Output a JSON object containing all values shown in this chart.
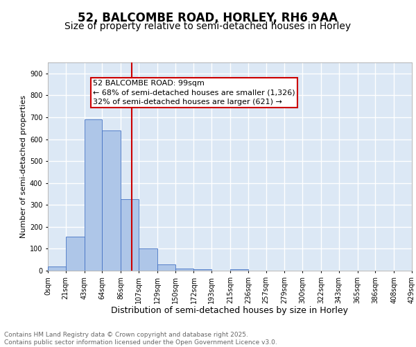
{
  "title": "52, BALCOMBE ROAD, HORLEY, RH6 9AA",
  "subtitle": "Size of property relative to semi-detached houses in Horley",
  "xlabel": "Distribution of semi-detached houses by size in Horley",
  "ylabel": "Number of semi-detached properties",
  "bar_edges": [
    0,
    21,
    43,
    64,
    86,
    107,
    129,
    150,
    172,
    193,
    215,
    236,
    257,
    279,
    300,
    322,
    343,
    365,
    386,
    408,
    429
  ],
  "bar_heights": [
    18,
    155,
    690,
    640,
    325,
    100,
    30,
    10,
    5,
    0,
    5,
    0,
    0,
    0,
    0,
    0,
    0,
    0,
    0,
    0
  ],
  "bar_color": "#aec6e8",
  "bar_edge_color": "#4472c4",
  "property_line_x": 99,
  "property_line_color": "#cc0000",
  "annotation_line1": "52 BALCOMBE ROAD: 99sqm",
  "annotation_line2": "← 68% of semi-detached houses are smaller (1,326)",
  "annotation_line3": "32% of semi-detached houses are larger (621) →",
  "annotation_box_color": "#cc0000",
  "annotation_box_bg": "#ffffff",
  "ylim": [
    0,
    950
  ],
  "yticks": [
    0,
    100,
    200,
    300,
    400,
    500,
    600,
    700,
    800,
    900
  ],
  "tick_labels": [
    "0sqm",
    "21sqm",
    "43sqm",
    "64sqm",
    "86sqm",
    "107sqm",
    "129sqm",
    "150sqm",
    "172sqm",
    "193sqm",
    "215sqm",
    "236sqm",
    "257sqm",
    "279sqm",
    "300sqm",
    "322sqm",
    "343sqm",
    "365sqm",
    "386sqm",
    "408sqm",
    "429sqm"
  ],
  "background_color": "#dce8f5",
  "grid_color": "#ffffff",
  "footer_text": "Contains HM Land Registry data © Crown copyright and database right 2025.\nContains public sector information licensed under the Open Government Licence v3.0.",
  "title_fontsize": 12,
  "subtitle_fontsize": 10,
  "xlabel_fontsize": 9,
  "ylabel_fontsize": 8,
  "tick_fontsize": 7,
  "footer_fontsize": 6.5,
  "annot_fontsize": 8
}
